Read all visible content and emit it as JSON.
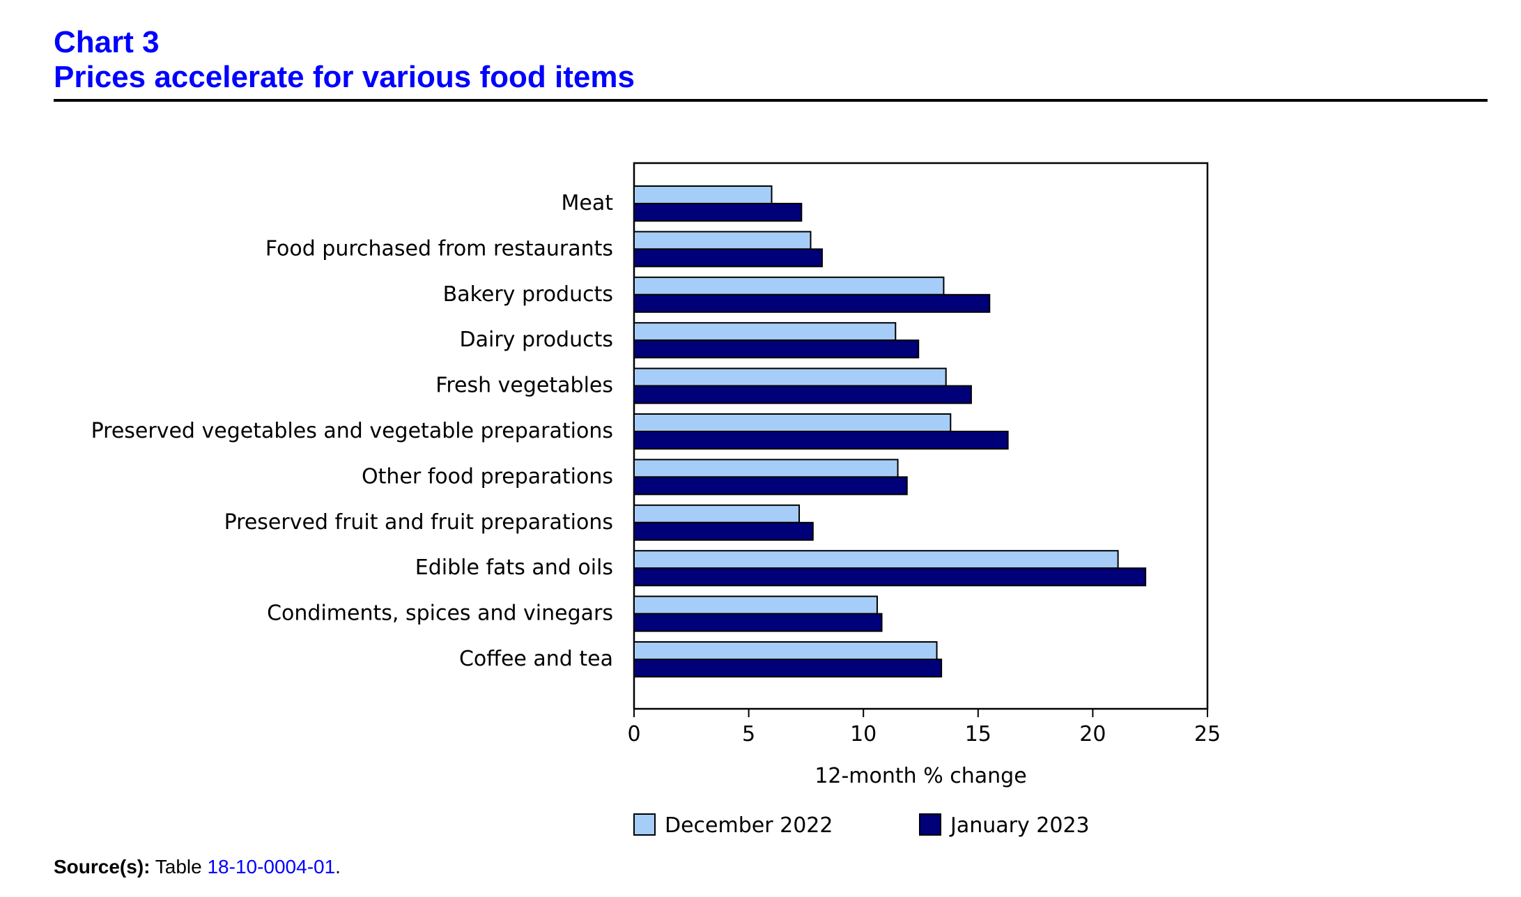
{
  "header": {
    "chart_number": "Chart 3",
    "title": "Prices accelerate for various food items"
  },
  "chart_data": {
    "type": "bar",
    "orientation": "horizontal",
    "categories": [
      "Meat",
      "Food purchased from restaurants",
      "Bakery products",
      "Dairy products",
      "Fresh vegetables",
      "Preserved vegetables and vegetable preparations",
      "Other food preparations",
      "Preserved fruit and fruit preparations",
      "Edible fats and oils",
      "Condiments, spices and vinegars",
      "Coffee and tea"
    ],
    "series": [
      {
        "name": "December 2022",
        "color": "#a6cdf7",
        "values": [
          6.0,
          7.7,
          13.5,
          11.4,
          13.6,
          13.8,
          11.5,
          7.2,
          21.1,
          10.6,
          13.2
        ]
      },
      {
        "name": "January 2023",
        "color": "#000078",
        "values": [
          7.3,
          8.2,
          15.5,
          12.4,
          14.7,
          16.3,
          11.9,
          7.8,
          22.3,
          10.8,
          13.4
        ]
      }
    ],
    "xlabel": "12-month % change",
    "xlim": [
      0,
      25
    ],
    "xticks": [
      "0",
      "5",
      "10",
      "15",
      "20",
      "25"
    ],
    "grid": false,
    "legend_position": "bottom"
  },
  "footer": {
    "source_label": "Source(s):",
    "source_text": " Table ",
    "source_link": "18-10-0004-01",
    "source_end": "."
  }
}
